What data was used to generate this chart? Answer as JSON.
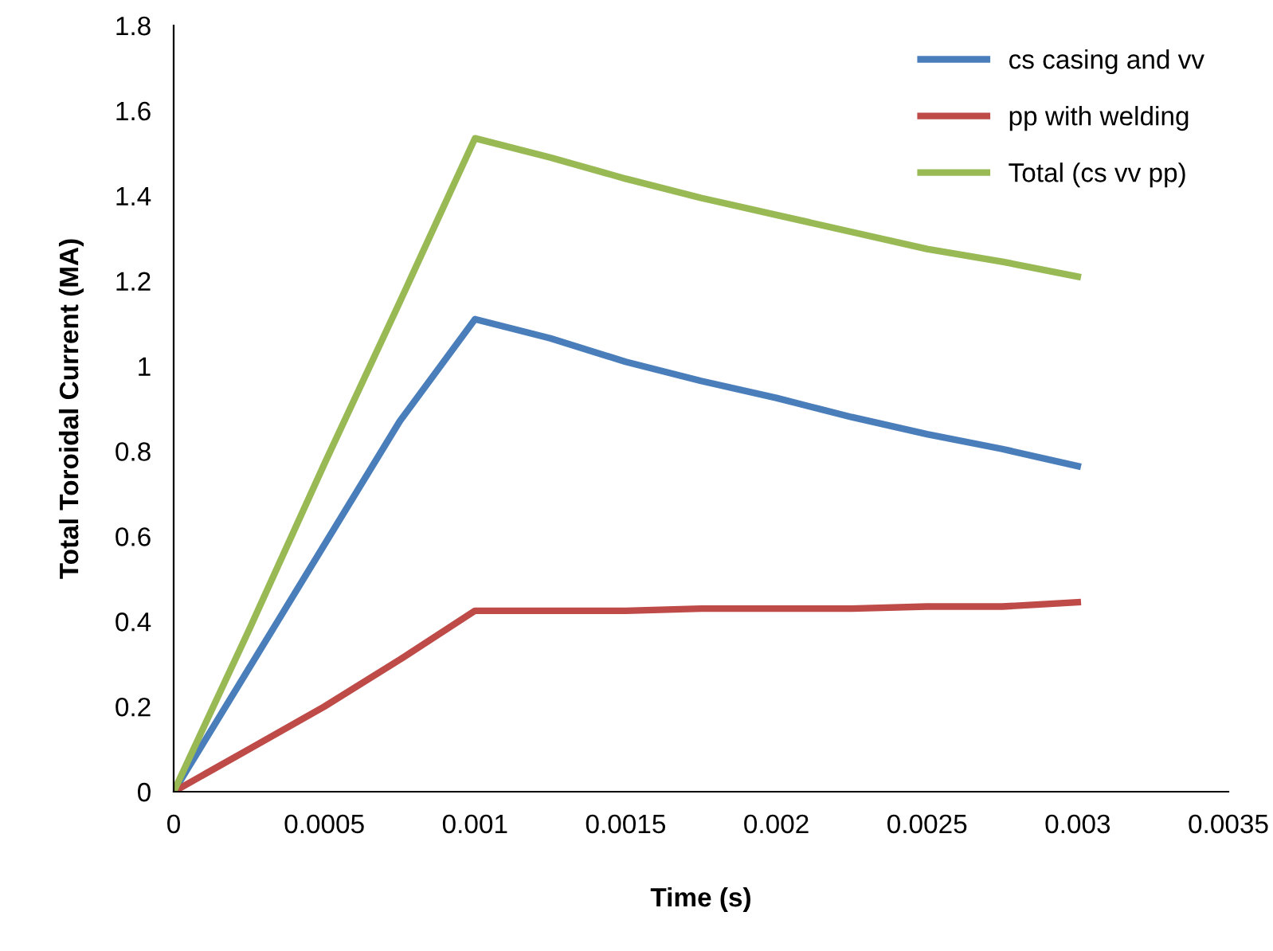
{
  "chart_data": {
    "type": "line",
    "xlabel": "Time (s)",
    "ylabel": "Total Toroidal Current (MA)",
    "x": [
      0,
      0.00025,
      0.0005,
      0.00075,
      0.001,
      0.00125,
      0.0015,
      0.00175,
      0.002,
      0.00225,
      0.0025,
      0.00275,
      0.003
    ],
    "series": [
      {
        "name": "cs casing and vv",
        "color": "#4a7ebb",
        "values": [
          0,
          0.29,
          0.58,
          0.87,
          1.11,
          1.065,
          1.01,
          0.965,
          0.925,
          0.88,
          0.84,
          0.805,
          0.765
        ]
      },
      {
        "name": "pp with welding",
        "color": "#be4b48",
        "values": [
          0,
          0.1,
          0.2,
          0.31,
          0.425,
          0.425,
          0.425,
          0.43,
          0.43,
          0.43,
          0.435,
          0.435,
          0.445
        ]
      },
      {
        "name": "Total (cs vv pp)",
        "color": "#98b954",
        "values": [
          0,
          0.38,
          0.77,
          1.15,
          1.535,
          1.49,
          1.44,
          1.395,
          1.355,
          1.315,
          1.275,
          1.245,
          1.21
        ]
      }
    ],
    "xlim": [
      0,
      0.0035
    ],
    "xticks": [
      0,
      0.0005,
      0.001,
      0.0015,
      0.002,
      0.0025,
      0.003,
      0.0035
    ],
    "ylim": [
      0,
      1.8
    ],
    "yticks": [
      0,
      0.2,
      0.4,
      0.6,
      0.8,
      1,
      1.2,
      1.4,
      1.6,
      1.8
    ],
    "grid": false,
    "legend": "top right",
    "marker": "none",
    "line_style": "solid"
  }
}
